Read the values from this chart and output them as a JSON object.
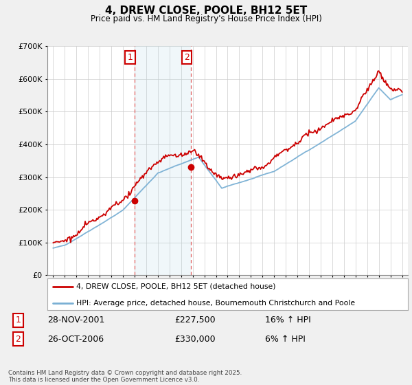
{
  "title": "4, DREW CLOSE, POOLE, BH12 5ET",
  "subtitle": "Price paid vs. HM Land Registry's House Price Index (HPI)",
  "sale1_date": "28-NOV-2001",
  "sale1_price": 227500,
  "sale1_hpi": "16% ↑ HPI",
  "sale2_date": "26-OCT-2006",
  "sale2_price": 330000,
  "sale2_hpi": "6% ↑ HPI",
  "legend1": "4, DREW CLOSE, POOLE, BH12 5ET (detached house)",
  "legend2": "HPI: Average price, detached house, Bournemouth Christchurch and Poole",
  "footnote": "Contains HM Land Registry data © Crown copyright and database right 2025.\nThis data is licensed under the Open Government Licence v3.0.",
  "hpi_color": "#7ab0d4",
  "price_color": "#CC0000",
  "sale1_x": 2002.0,
  "sale2_x": 2006.85,
  "ylim_min": 0,
  "ylim_max": 700000,
  "xlim_min": 1994.5,
  "xlim_max": 2025.5,
  "bg_color": "#f0f0f0",
  "plot_bg": "#ffffff"
}
